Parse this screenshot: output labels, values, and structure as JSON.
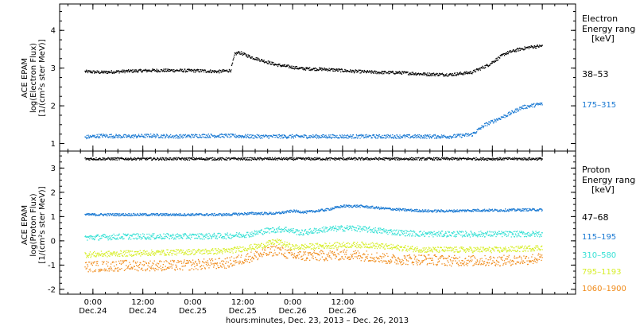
{
  "chart_data": [
    {
      "type": "scatter",
      "panel": "electron",
      "ylabel": [
        "ACE EPAM",
        "log(Electron Flux)",
        "[1/(cm²s ster MeV)]"
      ],
      "ylim": [
        0.8,
        4.7
      ],
      "yticks": [
        "1",
        "2",
        "3",
        "4"
      ],
      "legend_title": [
        "Electron",
        "Energy ranges",
        "[keV]"
      ],
      "series": [
        {
          "name": "38–53",
          "color": "#000000",
          "points": [
            [
              2,
              2.92
            ],
            [
              6,
              2.9
            ],
            [
              12,
              2.93
            ],
            [
              18,
              2.95
            ],
            [
              24,
              2.95
            ],
            [
              30,
              2.94
            ],
            [
              34,
              2.92
            ],
            [
              37,
              2.95
            ],
            [
              38,
              3.38
            ],
            [
              39,
              3.43
            ],
            [
              42,
              3.3
            ],
            [
              48,
              3.1
            ],
            [
              54,
              3.0
            ],
            [
              60,
              2.98
            ],
            [
              66,
              2.93
            ],
            [
              72,
              2.9
            ],
            [
              78,
              2.89
            ],
            [
              84,
              2.85
            ],
            [
              90,
              2.84
            ],
            [
              95,
              2.9
            ],
            [
              99,
              3.1
            ],
            [
              103,
              3.4
            ],
            [
              106,
              3.5
            ],
            [
              109,
              3.57
            ],
            [
              112,
              3.6
            ]
          ]
        },
        {
          "name": "175–315",
          "color": "#1878d2",
          "points": [
            [
              2,
              1.18
            ],
            [
              6,
              1.22
            ],
            [
              12,
              1.2
            ],
            [
              18,
              1.22
            ],
            [
              24,
              1.2
            ],
            [
              30,
              1.22
            ],
            [
              36,
              1.22
            ],
            [
              42,
              1.2
            ],
            [
              48,
              1.2
            ],
            [
              54,
              1.2
            ],
            [
              60,
              1.2
            ],
            [
              66,
              1.2
            ],
            [
              72,
              1.2
            ],
            [
              78,
              1.2
            ],
            [
              84,
              1.2
            ],
            [
              90,
              1.2
            ],
            [
              95,
              1.25
            ],
            [
              98,
              1.5
            ],
            [
              101,
              1.65
            ],
            [
              104,
              1.8
            ],
            [
              107,
              1.97
            ],
            [
              110,
              2.03
            ],
            [
              112,
              2.07
            ]
          ]
        }
      ]
    },
    {
      "type": "scatter",
      "panel": "proton",
      "ylabel": [
        "ACE EPAM",
        "log(Proton Flux)",
        "[1/(cm²s ster MeV)]"
      ],
      "ylim": [
        -2.2,
        3.7
      ],
      "yticks": [
        "-2",
        "-1",
        "0",
        "1",
        "2",
        "3"
      ],
      "legend_title": [
        "Proton",
        "Energy ranges",
        "[keV]"
      ],
      "series": [
        {
          "name": "47–68",
          "color": "#000000",
          "points": [
            [
              2,
              3.4
            ],
            [
              20,
              3.4
            ],
            [
              40,
              3.4
            ],
            [
              60,
              3.4
            ],
            [
              80,
              3.4
            ],
            [
              100,
              3.4
            ],
            [
              112,
              3.4
            ]
          ]
        },
        {
          "name": "115–195",
          "color": "#1878d2",
          "points": [
            [
              2,
              1.1
            ],
            [
              12,
              1.1
            ],
            [
              24,
              1.1
            ],
            [
              36,
              1.1
            ],
            [
              42,
              1.15
            ],
            [
              48,
              1.15
            ],
            [
              52,
              1.25
            ],
            [
              55,
              1.2
            ],
            [
              60,
              1.3
            ],
            [
              64,
              1.45
            ],
            [
              68,
              1.45
            ],
            [
              74,
              1.35
            ],
            [
              78,
              1.3
            ],
            [
              84,
              1.25
            ],
            [
              90,
              1.25
            ],
            [
              96,
              1.28
            ],
            [
              102,
              1.28
            ],
            [
              108,
              1.3
            ],
            [
              112,
              1.3
            ]
          ]
        },
        {
          "name": "310–580",
          "color": "#33e0d4",
          "points": [
            [
              2,
              0.15
            ],
            [
              12,
              0.2
            ],
            [
              24,
              0.2
            ],
            [
              36,
              0.22
            ],
            [
              42,
              0.3
            ],
            [
              46,
              0.45
            ],
            [
              50,
              0.5
            ],
            [
              54,
              0.35
            ],
            [
              60,
              0.5
            ],
            [
              66,
              0.55
            ],
            [
              72,
              0.45
            ],
            [
              78,
              0.35
            ],
            [
              84,
              0.3
            ],
            [
              90,
              0.3
            ],
            [
              96,
              0.3
            ],
            [
              102,
              0.3
            ],
            [
              108,
              0.3
            ],
            [
              112,
              0.3
            ]
          ]
        },
        {
          "name": "795–1193",
          "color": "#d7ee2a",
          "points": [
            [
              2,
              -0.55
            ],
            [
              12,
              -0.5
            ],
            [
              24,
              -0.45
            ],
            [
              36,
              -0.4
            ],
            [
              44,
              -0.2
            ],
            [
              48,
              0.0
            ],
            [
              52,
              -0.25
            ],
            [
              58,
              -0.2
            ],
            [
              64,
              -0.15
            ],
            [
              70,
              -0.15
            ],
            [
              76,
              -0.25
            ],
            [
              84,
              -0.35
            ],
            [
              90,
              -0.35
            ],
            [
              96,
              -0.35
            ],
            [
              102,
              -0.35
            ],
            [
              108,
              -0.3
            ],
            [
              112,
              -0.25
            ]
          ]
        },
        {
          "name": "1060–1900",
          "color": "#f08a18",
          "points": [
            [
              2,
              -1.05
            ],
            [
              12,
              -1.0
            ],
            [
              24,
              -1.0
            ],
            [
              36,
              -0.9
            ],
            [
              44,
              -0.55
            ],
            [
              48,
              -0.35
            ],
            [
              52,
              -0.6
            ],
            [
              58,
              -0.6
            ],
            [
              64,
              -0.55
            ],
            [
              70,
              -0.6
            ],
            [
              76,
              -0.75
            ],
            [
              84,
              -0.75
            ],
            [
              90,
              -0.8
            ],
            [
              96,
              -0.8
            ],
            [
              102,
              -0.8
            ],
            [
              108,
              -0.75
            ],
            [
              112,
              -0.7
            ]
          ]
        }
      ]
    }
  ],
  "x_axis": {
    "range_hours": [
      -4,
      120
    ],
    "tick_hours": [
      4,
      16,
      28,
      40,
      52,
      64,
      76,
      88,
      100,
      112
    ],
    "major_labels": [
      {
        "hour": 4,
        "time": "0:00",
        "date": "Dec.24"
      },
      {
        "hour": 16,
        "time": "12:00",
        "date": "Dec.24"
      },
      {
        "hour": 28,
        "time": "0:00",
        "date": "Dec.25"
      },
      {
        "hour": 40,
        "time": "12:00",
        "date": "Dec.25"
      },
      {
        "hour": 52,
        "time": "0:00",
        "date": "Dec.26"
      },
      {
        "hour": 64,
        "time": "12:00",
        "date": "Dec.26"
      }
    ],
    "xlabel": "hours:minutes, Dec. 23, 2013 – Dec. 26, 2013"
  }
}
